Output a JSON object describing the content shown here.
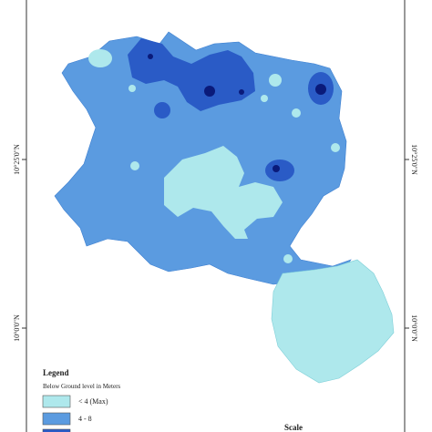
{
  "map": {
    "latitude_labels": {
      "left": [
        "10°25'0\"N",
        "10°0'0\"N"
      ],
      "right": [
        "10°25'0\"N",
        "10°0'0\"N"
      ]
    },
    "legend": {
      "title": "Legend",
      "subtitle": "Below Ground level in Meters",
      "items": [
        "< 4 (Max)",
        "4 - 8"
      ]
    },
    "scale": {
      "title": "Scale"
    }
  }
}
